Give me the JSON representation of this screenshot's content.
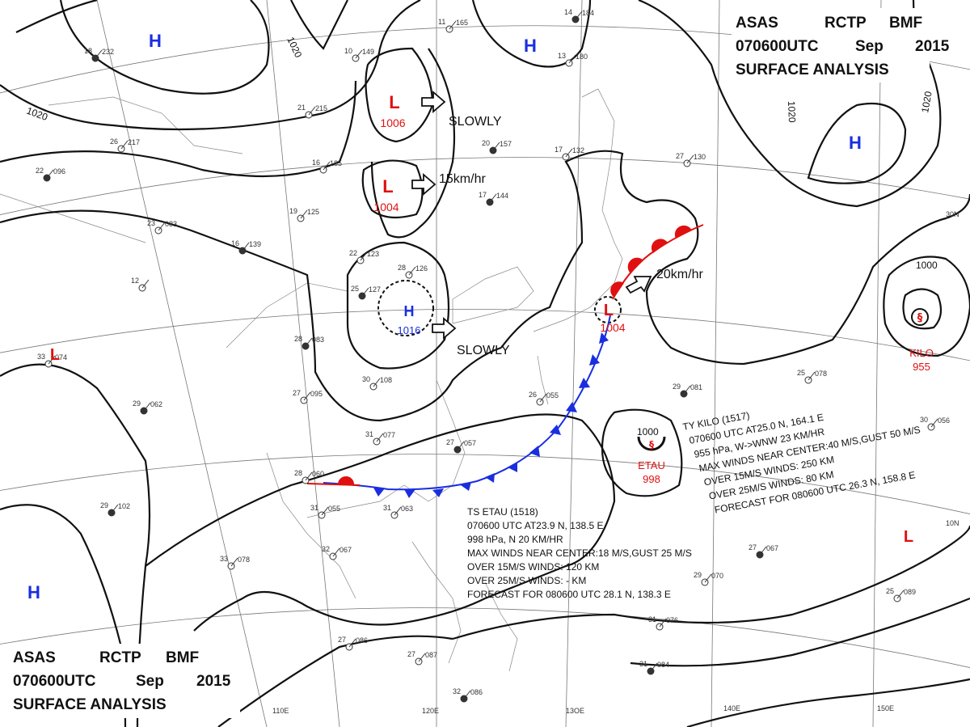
{
  "header_top": {
    "line1": [
      "ASAS",
      "RCTP",
      "BMF"
    ],
    "line2": [
      "070600UTC",
      "Sep",
      "2015"
    ],
    "line3": "SURFACE ANALYSIS"
  },
  "header_bottom": {
    "line1": [
      "ASAS",
      "RCTP",
      "BMF"
    ],
    "line2": [
      "070600UTC",
      "Sep",
      "2015"
    ],
    "line3": "SURFACE ANALYSIS"
  },
  "pressure_centers": [
    {
      "type": "H",
      "value": "",
      "color": "#1a2ee0"
    },
    {
      "type": "H",
      "value": "",
      "color": "#1a2ee0"
    },
    {
      "type": "H",
      "value": "",
      "color": "#1a2ee0"
    },
    {
      "type": "H",
      "value": "",
      "color": "#1a2ee0"
    },
    {
      "type": "L",
      "value": "1006",
      "color": "#e01010"
    },
    {
      "type": "L",
      "value": "1004",
      "color": "#e01010"
    },
    {
      "type": "H",
      "value": "1016",
      "color": "#1a2ee0"
    },
    {
      "type": "L",
      "value": "1004",
      "color": "#e01010"
    },
    {
      "type": "L",
      "value": "",
      "color": "#e01010"
    },
    {
      "type": "L",
      "value": "",
      "color": "#e01010"
    }
  ],
  "motion_labels": [
    "SLOWLY",
    "15km/hr",
    "SLOWLY",
    "20km/hr"
  ],
  "isobar_labels": [
    "1020",
    "1020",
    "1020",
    "1020",
    "1000",
    "1000"
  ],
  "storms": [
    {
      "name": "KILO",
      "pressure": "955",
      "color": "#e01010"
    },
    {
      "name": "ETAU",
      "pressure": "998",
      "color": "#e01010"
    }
  ],
  "kilo_bulletin": [
    "TY  KILO  (1517)",
    "070600 UTC  AT25.0 N, 164.1 E",
    "955 hPa, W->WNW  23 KM/HR",
    "MAX WINDS NEAR CENTER:40 M/S,GUST 50 M/S",
    "OVER 15M/S WINDS: 250 KM",
    "OVER 25M/S WINDS: 80 KM",
    "FORECAST FOR 080600 UTC 26.3 N, 158.8 E"
  ],
  "etau_bulletin": [
    "TS  ETAU  (1518)",
    "070600 UTC  AT23.9 N, 138.5 E",
    "998 hPa, N  20 KM/HR",
    "MAX WINDS NEAR CENTER:18 M/S,GUST 25 M/S",
    "OVER 15M/S WINDS: 120 KM",
    "OVER 25M/S WINDS: - KM",
    "FORECAST FOR 080600 UTC 28.1 N, 138.3 E"
  ],
  "longitude_labels": [
    "110E",
    "120E",
    "13OE",
    "140E",
    "150E"
  ],
  "latitude_labels": [
    "30N",
    "10N"
  ],
  "stations": [
    {
      "t": "18",
      "p": "232"
    },
    {
      "t": "10",
      "p": "149"
    },
    {
      "t": "11",
      "p": "165"
    },
    {
      "t": "14",
      "p": "184"
    },
    {
      "t": "13",
      "p": "180"
    },
    {
      "t": "21",
      "p": "215"
    },
    {
      "t": "20",
      "p": "157"
    },
    {
      "t": "17",
      "p": "132"
    },
    {
      "t": "27",
      "p": "130"
    },
    {
      "t": "22",
      "p": "096"
    },
    {
      "t": "26",
      "p": "217"
    },
    {
      "t": "16",
      "p": "185"
    },
    {
      "t": "17",
      "p": "144"
    },
    {
      "t": "19",
      "p": "125"
    },
    {
      "t": "23",
      "p": "083"
    },
    {
      "t": "16",
      "p": "139"
    },
    {
      "t": "22",
      "p": "123"
    },
    {
      "t": "28",
      "p": "126"
    },
    {
      "t": "25",
      "p": "127"
    },
    {
      "t": "12",
      "p": ""
    },
    {
      "t": "33",
      "p": "074"
    },
    {
      "t": "28",
      "p": "083"
    },
    {
      "t": "30",
      "p": "108"
    },
    {
      "t": "27",
      "p": "095"
    },
    {
      "t": "29",
      "p": "062"
    },
    {
      "t": "26",
      "p": "055"
    },
    {
      "t": "31",
      "p": "077"
    },
    {
      "t": "27",
      "p": "057"
    },
    {
      "t": "28",
      "p": "060"
    },
    {
      "t": "31",
      "p": "055"
    },
    {
      "t": "29",
      "p": "102"
    },
    {
      "t": "32",
      "p": "067"
    },
    {
      "t": "33",
      "p": "078"
    },
    {
      "t": "29",
      "p": "081"
    },
    {
      "t": "25",
      "p": "078"
    },
    {
      "t": "30",
      "p": "056"
    },
    {
      "t": "27",
      "p": "067"
    },
    {
      "t": "25",
      "p": "089"
    },
    {
      "t": "31",
      "p": "076"
    },
    {
      "t": "31",
      "p": "084"
    },
    {
      "t": "27",
      "p": "086"
    },
    {
      "t": "27",
      "p": "087"
    },
    {
      "t": "32",
      "p": "086"
    },
    {
      "t": "31",
      "p": "063"
    },
    {
      "t": "29",
      "p": "070"
    }
  ],
  "colors": {
    "high": "#1a2ee0",
    "low": "#e01010",
    "cold_front": "#1a2ee0",
    "warm_front": "#e01010",
    "isobar": "#111111",
    "graticule": "#777777"
  }
}
